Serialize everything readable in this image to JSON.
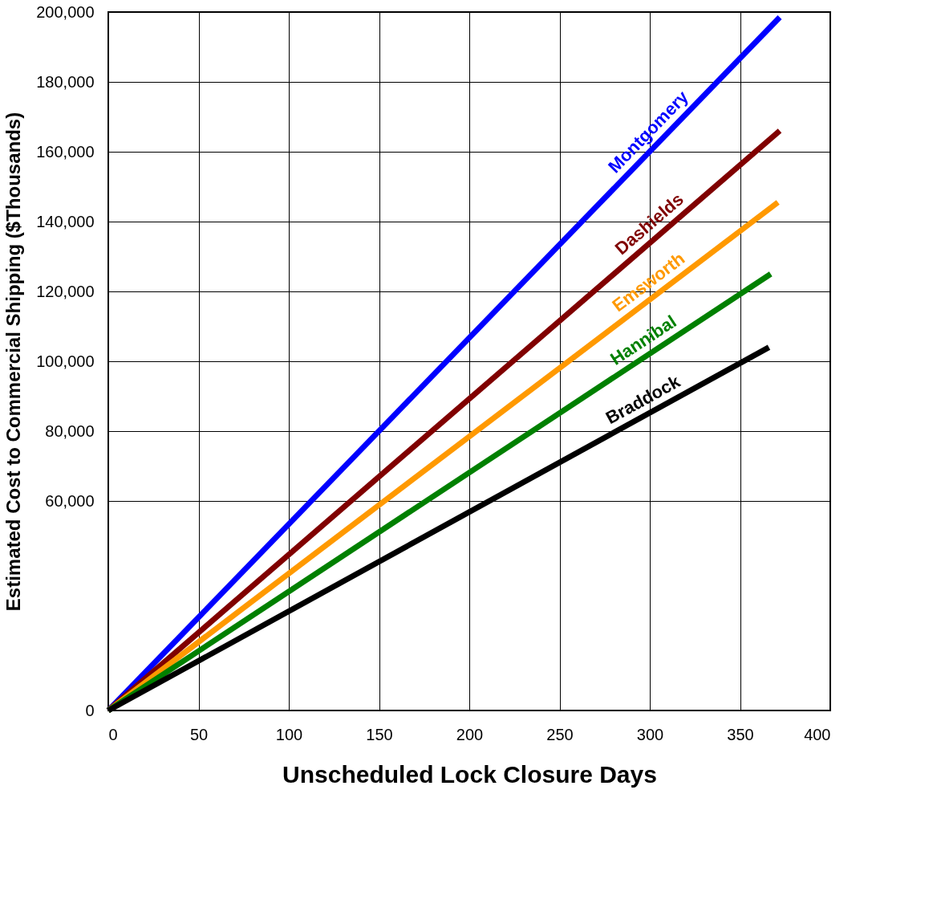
{
  "chart_data": {
    "type": "line",
    "xlabel": "Unscheduled Lock Closure Days",
    "ylabel": "Estimated Cost to Commercial Shipping ($Thousands)",
    "xlim": [
      0,
      400
    ],
    "xticks": [
      0,
      50,
      100,
      150,
      200,
      250,
      300,
      350,
      400
    ],
    "ylim": [
      0,
      200000
    ],
    "yticks": [
      0,
      {
        "value": 60000,
        "label": "60,000"
      },
      {
        "value": 80000,
        "label": "80,000"
      },
      {
        "value": 100000,
        "label": "100,000"
      },
      {
        "value": 120000,
        "label": "120,000"
      },
      {
        "value": 140000,
        "label": "140,000"
      },
      {
        "value": 160000,
        "label": "160,000"
      },
      {
        "value": 180000,
        "label": "180,000"
      },
      {
        "value": 200000,
        "label": "200,000"
      }
    ],
    "grid": true,
    "line_style": "solid",
    "series": [
      {
        "name": "Montgomery",
        "color": "#0000ff",
        "x": [
          0,
          372
        ],
        "values": [
          0,
          198500
        ]
      },
      {
        "name": "Dashields",
        "color": "#800000",
        "x": [
          0,
          372
        ],
        "values": [
          0,
          166000
        ]
      },
      {
        "name": "Emsworth",
        "color": "#ff9900",
        "x": [
          0,
          371
        ],
        "values": [
          0,
          145500
        ]
      },
      {
        "name": "Hannibal",
        "color": "#008000",
        "x": [
          0,
          367
        ],
        "values": [
          0,
          125000
        ]
      },
      {
        "name": "Braddock",
        "color": "#000000",
        "x": [
          0,
          366
        ],
        "values": [
          0,
          104000
        ]
      }
    ]
  }
}
